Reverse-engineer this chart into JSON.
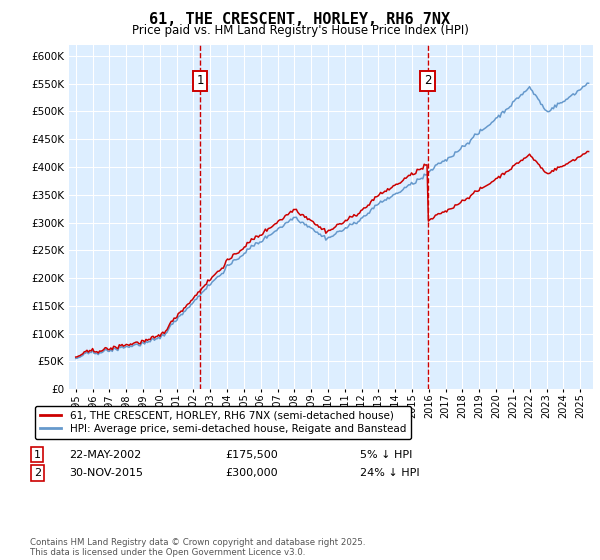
{
  "title": "61, THE CRESCENT, HORLEY, RH6 7NX",
  "subtitle": "Price paid vs. HM Land Registry's House Price Index (HPI)",
  "ylim": [
    0,
    620000
  ],
  "hpi_color": "#6699cc",
  "price_color": "#cc0000",
  "background_color": "#ddeeff",
  "annotation1": {
    "x": 2002.39,
    "label": "1",
    "date": "22-MAY-2002",
    "price": "£175,500",
    "pct": "5% ↓ HPI"
  },
  "annotation2": {
    "x": 2015.92,
    "label": "2",
    "date": "30-NOV-2015",
    "price": "£300,000",
    "pct": "24% ↓ HPI"
  },
  "legend_line1": "61, THE CRESCENT, HORLEY, RH6 7NX (semi-detached house)",
  "legend_line2": "HPI: Average price, semi-detached house, Reigate and Banstead",
  "footer": "Contains HM Land Registry data © Crown copyright and database right 2025.\nThis data is licensed under the Open Government Licence v3.0."
}
